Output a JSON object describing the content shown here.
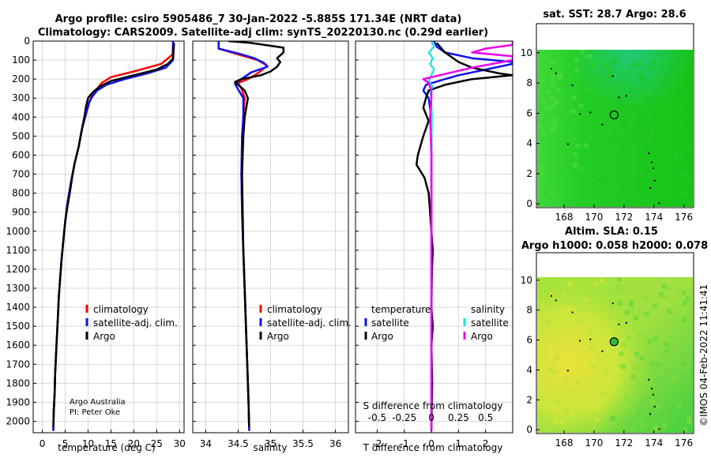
{
  "figure": {
    "title_line1": "Argo profile: csiro 5905486_7 30-Jan-2022 -5.885S 171.34E (NRT data)",
    "title_line2": "Climatology: CARS2009. Satellite-adj clim: synTS_20220130.nc (0.29d earlier)",
    "credit_line1": "Argo Australia",
    "credit_line2": "PI: Peter Oke",
    "footer": "©IMOS 04-Feb-2022 11:41:41"
  },
  "colors": {
    "red": "#ff0000",
    "blue": "#1010ee",
    "black": "#000000",
    "cyan": "#00e5e5",
    "magenta": "#ee00ee",
    "grid": "#d9d9d9"
  },
  "chart_data": [
    {
      "id": "temperature",
      "type": "line",
      "xlabel": "temperature (deg C)",
      "xlim": [
        -2,
        31
      ],
      "ylim": [
        2060,
        0
      ],
      "xticks": [
        0,
        5,
        10,
        15,
        20,
        25,
        30
      ],
      "yticks": [
        0,
        100,
        200,
        300,
        400,
        500,
        600,
        700,
        800,
        900,
        1000,
        1100,
        1200,
        1300,
        1400,
        1500,
        1600,
        1700,
        1800,
        1900,
        2000
      ],
      "legend": [
        "climatology",
        "satellite-adj. clim.",
        "Argo"
      ],
      "series": [
        {
          "name": "climatology",
          "color": "red",
          "width": 2.5,
          "points": [
            [
              28.6,
              0
            ],
            [
              28.5,
              70
            ],
            [
              26,
              120
            ],
            [
              20,
              160
            ],
            [
              15,
              190
            ],
            [
              13,
              220
            ],
            [
              12,
              250
            ],
            [
              11,
              280
            ],
            [
              10.3,
              320
            ],
            [
              9.6,
              380
            ],
            [
              8.8,
              450
            ],
            [
              8,
              550
            ],
            [
              7,
              650
            ],
            [
              6.2,
              750
            ],
            [
              5.5,
              850
            ],
            [
              5,
              950
            ],
            [
              4.6,
              1050
            ],
            [
              4.2,
              1150
            ],
            [
              3.9,
              1250
            ],
            [
              3.6,
              1350
            ],
            [
              3.4,
              1450
            ],
            [
              3.2,
              1550
            ],
            [
              3,
              1650
            ],
            [
              2.8,
              1750
            ],
            [
              2.7,
              1850
            ],
            [
              2.5,
              1950
            ],
            [
              2.4,
              2050
            ]
          ]
        },
        {
          "name": "satellite-adj. clim.",
          "color": "blue",
          "width": 2.5,
          "points": [
            [
              28.6,
              0
            ],
            [
              28.6,
              100
            ],
            [
              27,
              140
            ],
            [
              23,
              170
            ],
            [
              18,
              200
            ],
            [
              14,
              230
            ],
            [
              12,
              260
            ],
            [
              11,
              290
            ],
            [
              10.3,
              320
            ],
            [
              9.6,
              380
            ],
            [
              8.8,
              450
            ],
            [
              8,
              550
            ],
            [
              7,
              650
            ],
            [
              6.2,
              750
            ],
            [
              5.5,
              850
            ],
            [
              5,
              950
            ],
            [
              4.6,
              1050
            ],
            [
              4.2,
              1150
            ],
            [
              3.9,
              1250
            ],
            [
              3.6,
              1350
            ],
            [
              3.4,
              1450
            ],
            [
              3.2,
              1550
            ],
            [
              3,
              1650
            ],
            [
              2.8,
              1750
            ],
            [
              2.7,
              1850
            ],
            [
              2.5,
              1950
            ],
            [
              2.4,
              2050
            ]
          ]
        },
        {
          "name": "Argo",
          "color": "black",
          "width": 2.5,
          "points": [
            [
              28.8,
              10
            ],
            [
              28.6,
              90
            ],
            [
              27.5,
              120
            ],
            [
              25,
              150
            ],
            [
              20,
              180
            ],
            [
              15,
              210
            ],
            [
              12.5,
              240
            ],
            [
              11,
              270
            ],
            [
              10,
              300
            ],
            [
              9.5,
              350
            ],
            [
              9.2,
              400
            ],
            [
              8.5,
              480
            ],
            [
              8,
              550
            ],
            [
              7.5,
              600
            ],
            [
              7,
              650
            ],
            [
              6.5,
              720
            ],
            [
              6,
              800
            ],
            [
              5.5,
              870
            ],
            [
              5,
              950
            ],
            [
              4.6,
              1050
            ],
            [
              4.2,
              1150
            ],
            [
              3.9,
              1250
            ],
            [
              3.6,
              1350
            ],
            [
              3.4,
              1450
            ],
            [
              3.2,
              1550
            ],
            [
              3,
              1650
            ],
            [
              2.8,
              1750
            ],
            [
              2.7,
              1850
            ],
            [
              2.5,
              1950
            ],
            [
              2.4,
              2030
            ]
          ]
        }
      ]
    },
    {
      "id": "salinity",
      "type": "line",
      "xlabel": "salinity",
      "xlim": [
        33.8,
        36.2
      ],
      "ylim": [
        2060,
        0
      ],
      "xticks": [
        34,
        34.5,
        35,
        35.5,
        36
      ],
      "legend": [
        "climatology",
        "satellite-adj. clim.",
        "Argo"
      ],
      "series": [
        {
          "name": "climatology",
          "color": "red",
          "width": 2.5,
          "points": [
            [
              34.2,
              0
            ],
            [
              34.2,
              40
            ],
            [
              34.5,
              70
            ],
            [
              34.8,
              100
            ],
            [
              34.95,
              130
            ],
            [
              34.8,
              170
            ],
            [
              34.65,
              200
            ],
            [
              34.5,
              220
            ],
            [
              34.55,
              250
            ],
            [
              34.6,
              300
            ],
            [
              34.58,
              400
            ],
            [
              34.56,
              500
            ],
            [
              34.55,
              700
            ],
            [
              34.56,
              900
            ],
            [
              34.58,
              1100
            ],
            [
              34.6,
              1300
            ],
            [
              34.62,
              1500
            ],
            [
              34.64,
              1700
            ],
            [
              34.66,
              1900
            ],
            [
              34.67,
              2050
            ]
          ]
        },
        {
          "name": "satellite-adj. clim.",
          "color": "blue",
          "width": 2.5,
          "points": [
            [
              34.2,
              0
            ],
            [
              34.2,
              40
            ],
            [
              34.5,
              65
            ],
            [
              34.75,
              90
            ],
            [
              34.9,
              115
            ],
            [
              34.95,
              135
            ],
            [
              34.7,
              165
            ],
            [
              34.55,
              200
            ],
            [
              34.45,
              225
            ],
            [
              34.5,
              255
            ],
            [
              34.58,
              300
            ],
            [
              34.58,
              400
            ],
            [
              34.56,
              500
            ],
            [
              34.55,
              700
            ],
            [
              34.56,
              900
            ],
            [
              34.58,
              1100
            ],
            [
              34.6,
              1300
            ],
            [
              34.62,
              1500
            ],
            [
              34.64,
              1700
            ],
            [
              34.66,
              1900
            ],
            [
              34.67,
              2050
            ]
          ]
        },
        {
          "name": "Argo",
          "color": "black",
          "width": 2.5,
          "points": [
            [
              34.35,
              0
            ],
            [
              34.7,
              10
            ],
            [
              35.2,
              35
            ],
            [
              35.2,
              60
            ],
            [
              35.1,
              90
            ],
            [
              35.15,
              110
            ],
            [
              35.1,
              135
            ],
            [
              35.0,
              160
            ],
            [
              34.85,
              180
            ],
            [
              34.55,
              200
            ],
            [
              34.45,
              215
            ],
            [
              34.5,
              230
            ],
            [
              34.6,
              260
            ],
            [
              34.65,
              300
            ],
            [
              34.6,
              400
            ],
            [
              34.58,
              500
            ],
            [
              34.56,
              700
            ],
            [
              34.57,
              900
            ],
            [
              34.58,
              1100
            ],
            [
              34.6,
              1300
            ],
            [
              34.62,
              1500
            ],
            [
              34.64,
              1700
            ],
            [
              34.66,
              1900
            ],
            [
              34.67,
              2030
            ]
          ]
        }
      ]
    },
    {
      "id": "difference",
      "type": "line",
      "xlabel": "T difference from climatology",
      "xlabel_top": "S difference from climatology",
      "xlim": [
        -2.8,
        3.0
      ],
      "ylim": [
        2060,
        0
      ],
      "xticks": [
        -2,
        -1,
        0,
        1,
        2
      ],
      "xticks_s": [
        -0.5,
        -0.25,
        0,
        0.25,
        0.5
      ],
      "xtick_labels_s": [
        "-0.5",
        "-0.25",
        "0",
        "0.25",
        "0.5"
      ],
      "legend_temperature": {
        "header": "temperature",
        "items": [
          "satellite",
          "Argo"
        ]
      },
      "legend_salinity": {
        "header": "salinity",
        "items": [
          "satellite",
          "Argo"
        ]
      },
      "series": [
        {
          "name": "T satellite",
          "color": "blue",
          "width": 2.5,
          "points": [
            [
              0.1,
              0
            ],
            [
              0.2,
              30
            ],
            [
              0.5,
              60
            ],
            [
              1.5,
              90
            ],
            [
              3.0,
              110
            ],
            [
              3.0,
              120
            ],
            [
              2.0,
              150
            ],
            [
              1.0,
              180
            ],
            [
              0.5,
              200
            ],
            [
              -0.2,
              230
            ],
            [
              -0.3,
              260
            ],
            [
              -0.1,
              300
            ],
            [
              0,
              400
            ],
            [
              0,
              600
            ],
            [
              0,
              900
            ],
            [
              0,
              1300
            ],
            [
              0,
              1700
            ],
            [
              0,
              2050
            ]
          ]
        },
        {
          "name": "T Argo",
          "color": "black",
          "width": 2.5,
          "points": [
            [
              0.2,
              10
            ],
            [
              0.5,
              60
            ],
            [
              1.0,
              110
            ],
            [
              1.5,
              140
            ],
            [
              2.5,
              170
            ],
            [
              3.0,
              180
            ],
            [
              1.5,
              200
            ],
            [
              0.5,
              230
            ],
            [
              -0.1,
              260
            ],
            [
              -0.2,
              300
            ],
            [
              -0.3,
              350
            ],
            [
              -0.1,
              420
            ],
            [
              -0.3,
              500
            ],
            [
              -0.5,
              600
            ],
            [
              -0.55,
              650
            ],
            [
              -0.25,
              720
            ],
            [
              -0.1,
              800
            ],
            [
              -0.05,
              900
            ],
            [
              0,
              1000
            ],
            [
              0.05,
              1100
            ],
            [
              0.02,
              1200
            ],
            [
              0,
              1400
            ],
            [
              0.05,
              1500
            ],
            [
              0,
              1600
            ],
            [
              0.03,
              1800
            ],
            [
              0,
              2030
            ]
          ]
        },
        {
          "name": "S satellite",
          "color": "cyan",
          "width": 2,
          "points": [
            [
              0,
              0
            ],
            [
              0.1,
              30
            ],
            [
              -0.1,
              60
            ],
            [
              0.05,
              90
            ],
            [
              -0.05,
              120
            ],
            [
              0.1,
              150
            ],
            [
              0,
              180
            ],
            [
              -0.1,
              210
            ],
            [
              0.05,
              240
            ],
            [
              -0.05,
              270
            ],
            [
              0,
              300
            ],
            [
              0.02,
              400
            ],
            [
              0,
              600
            ],
            [
              0,
              900
            ],
            [
              0,
              1300
            ],
            [
              0,
              1700
            ],
            [
              0,
              2050
            ]
          ]
        },
        {
          "name": "S Argo",
          "color": "magenta",
          "width": 2.5,
          "points": [
            [
              3.0,
              0
            ],
            [
              3.0,
              20
            ],
            [
              2.0,
              40
            ],
            [
              1.5,
              60
            ],
            [
              3.0,
              80
            ],
            [
              3.0,
              100
            ],
            [
              1.5,
              140
            ],
            [
              0.3,
              180
            ],
            [
              -0.3,
              200
            ],
            [
              -0.1,
              220
            ],
            [
              0,
              260
            ],
            [
              0,
              300
            ],
            [
              -0.05,
              400
            ],
            [
              0,
              600
            ],
            [
              0,
              900
            ],
            [
              0,
              1300
            ],
            [
              0,
              1700
            ],
            [
              0,
              2050
            ]
          ]
        }
      ]
    },
    {
      "id": "sst_map",
      "type": "heatmap",
      "title": "sat. SST: 28.7 Argo: 28.6",
      "xlim": [
        166.2,
        176.6
      ],
      "ylim": [
        -0.2,
        10.2
      ],
      "xticks": [
        168,
        170,
        172,
        174,
        176
      ],
      "yticks": [
        0,
        2,
        4,
        6,
        8,
        10
      ],
      "marker": [
        171.34,
        5.885
      ]
    },
    {
      "id": "sla_map",
      "type": "heatmap",
      "title_line1": "Altim. SLA: 0.15",
      "title_line2": "Argo h1000: 0.058 h2000: 0.078",
      "xlim": [
        166.2,
        176.6
      ],
      "ylim": [
        -0.2,
        10.2
      ],
      "xticks": [
        168,
        170,
        172,
        174,
        176
      ],
      "yticks": [
        0,
        2,
        4,
        6,
        8,
        10
      ],
      "marker": [
        171.34,
        5.885
      ]
    }
  ]
}
